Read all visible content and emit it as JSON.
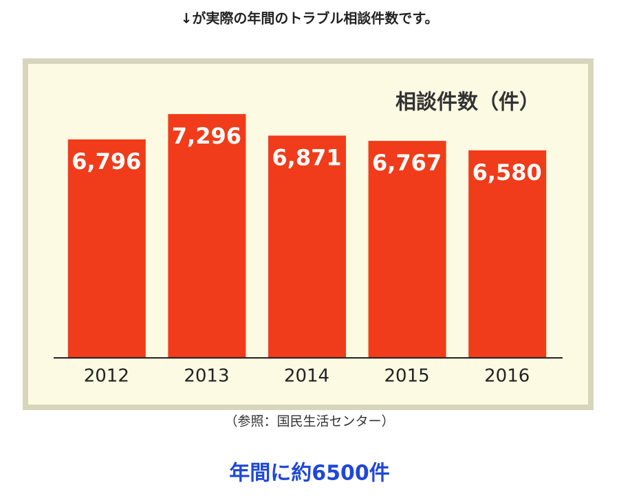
{
  "header": {
    "title": "↓が実際の年間のトラブル相談件数です。"
  },
  "chart_data": {
    "type": "bar",
    "title": "相談件数（件）",
    "categories": [
      "2012",
      "2013",
      "2014",
      "2015",
      "2016"
    ],
    "values": [
      6796,
      7296,
      6871,
      6767,
      6580
    ],
    "value_labels": [
      "6,796",
      "7,296",
      "6,871",
      "6,767",
      "6,580"
    ],
    "color": "#f03c1a",
    "ylim": [
      2500,
      7500
    ]
  },
  "source": "（参照：国民生活センター）",
  "summary": "年間に約6500件"
}
